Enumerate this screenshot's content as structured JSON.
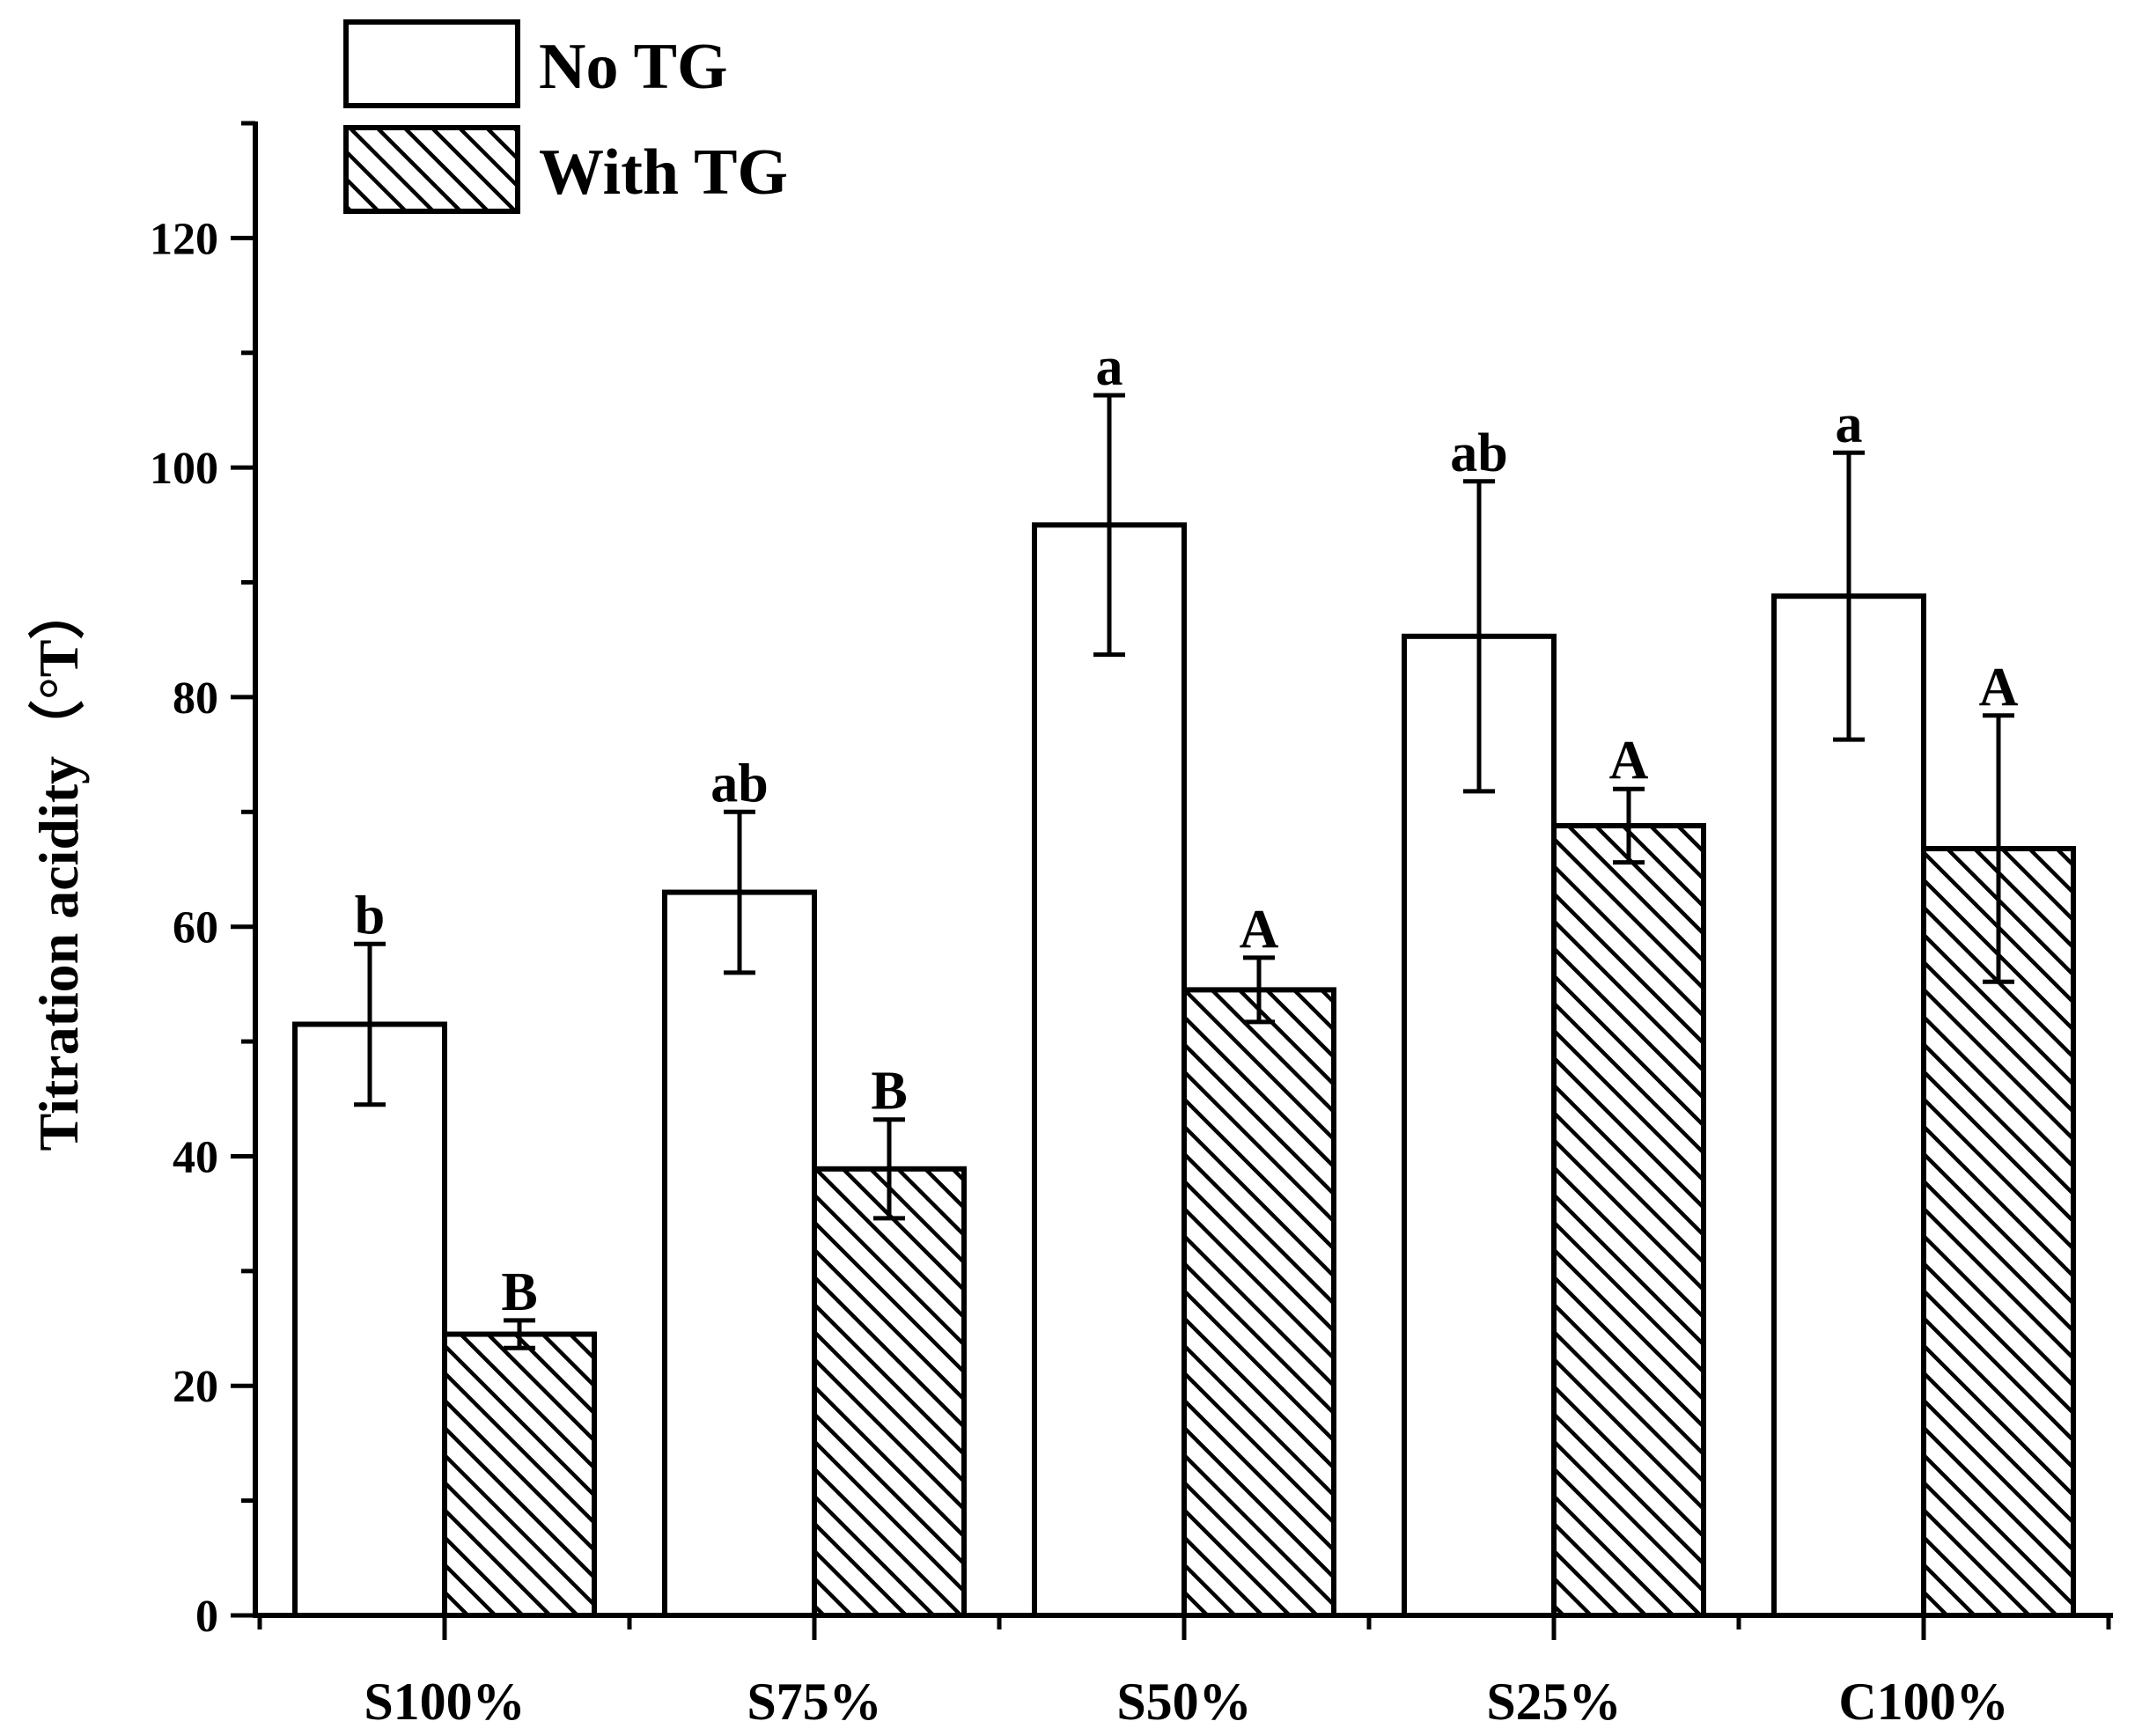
{
  "chart_data": {
    "type": "bar",
    "title": "",
    "xlabel": "",
    "ylabel": "Titration acidity（°T）",
    "ylim": [
      0,
      130
    ],
    "yticks": [
      0,
      20,
      40,
      60,
      80,
      100,
      120
    ],
    "categories": [
      "S100%",
      "S75%",
      "S50%",
      "S25%",
      "C100%"
    ],
    "legend_position": "top-left",
    "series": [
      {
        "name": "No TG",
        "pattern": "none",
        "values": [
          51.5,
          63,
          95,
          85.3,
          88.8
        ],
        "errors": [
          7,
          7,
          11.3,
          13.5,
          12.5
        ],
        "labels": [
          "b",
          "ab",
          "a",
          "ab",
          "a"
        ]
      },
      {
        "name": "With TG",
        "pattern": "hatch",
        "values": [
          24.5,
          38.9,
          54.5,
          68.8,
          66.8
        ],
        "errors": [
          1.2,
          4.3,
          2.8,
          3.2,
          11.6
        ],
        "labels": [
          "B",
          "B",
          "A",
          "A",
          "A"
        ]
      }
    ],
    "colors": {
      "bar_fill": "#ffffff",
      "stroke": "#000000"
    }
  }
}
